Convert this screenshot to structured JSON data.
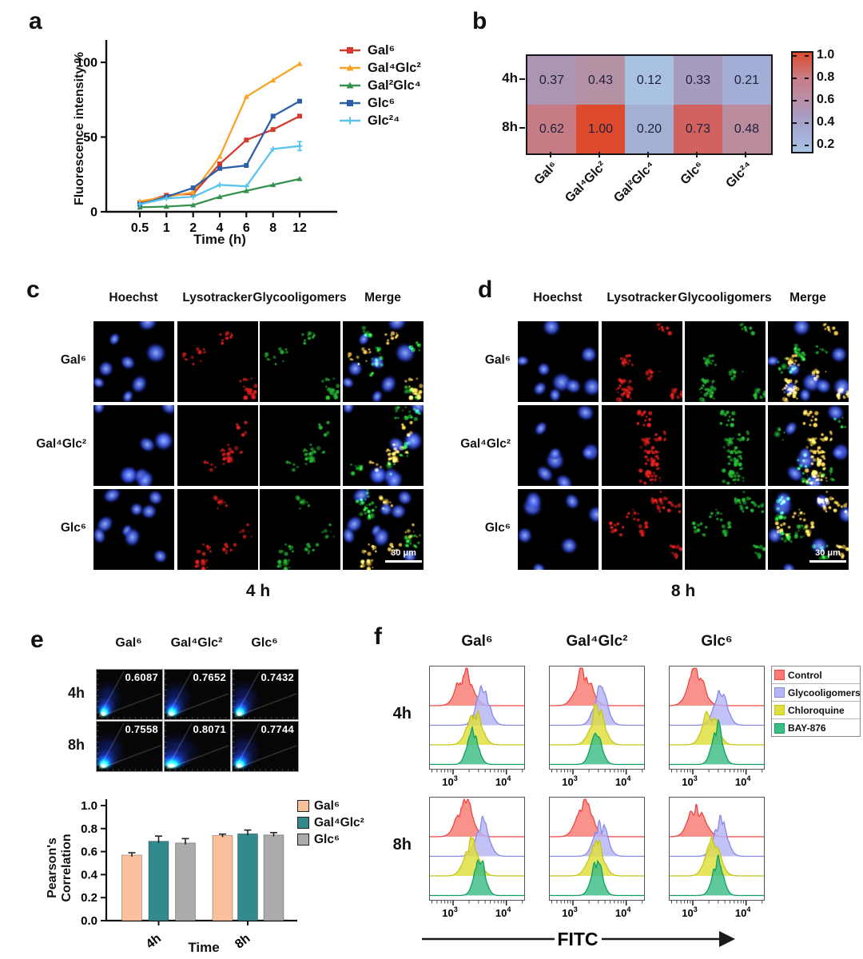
{
  "panels": {
    "a": "a",
    "b": "b",
    "c": "c",
    "d": "d",
    "e": "e",
    "f": "f"
  },
  "chart_data": [
    {
      "id": "a_line",
      "type": "line",
      "xlabel": "Time (h)",
      "ylabel": "Fluorescence intensity %",
      "x_categories": [
        "0.5",
        "1",
        "2",
        "4",
        "6",
        "8",
        "12"
      ],
      "yticks": [
        "0",
        "50",
        "100"
      ],
      "ytick_values": [
        0,
        50,
        100
      ],
      "ylim": [
        0,
        105
      ],
      "legend_position": "right",
      "series": [
        {
          "name": "Gal⁶",
          "color": "#d23b2d",
          "marker": "square",
          "values": [
            6,
            11,
            12,
            32,
            48,
            55,
            64
          ]
        },
        {
          "name": "Gal⁴Glc²",
          "color": "#f7a427",
          "marker": "triangle",
          "values": [
            7,
            10,
            13,
            37,
            77,
            88,
            99
          ]
        },
        {
          "name": "Gal²Glc⁴",
          "color": "#35914d",
          "marker": "triangle",
          "values": [
            3,
            3.5,
            4.5,
            10,
            14,
            18,
            22
          ]
        },
        {
          "name": "Glc⁶",
          "color": "#2d5fa8",
          "marker": "square",
          "values": [
            5,
            10,
            16,
            29,
            31,
            64,
            74
          ]
        },
        {
          "name": "Glc²⁴",
          "color": "#59c5ea",
          "marker": "plus",
          "values": [
            5,
            9,
            10,
            18,
            17,
            42,
            44
          ],
          "error_bars": [
            0,
            0,
            0,
            0,
            0,
            0,
            3
          ]
        }
      ]
    },
    {
      "id": "b_heatmap",
      "type": "heatmap",
      "rows": [
        "4h",
        "8h"
      ],
      "columns": [
        "Gal⁶",
        "Gal⁴Glc²",
        "Gal²Glc⁴",
        "Glc⁶",
        "Glc²⁴"
      ],
      "values": [
        [
          0.37,
          0.43,
          0.12,
          0.33,
          0.21
        ],
        [
          0.62,
          1.0,
          0.2,
          0.73,
          0.48
        ]
      ],
      "value_labels": [
        [
          "0.37",
          "0.43",
          "0.12",
          "0.33",
          "0.21"
        ],
        [
          "0.62",
          "1.00",
          "0.20",
          "0.73",
          "0.48"
        ]
      ],
      "cell_colors": [
        [
          "#ab95b2",
          "#b492a4",
          "#a9c2e2",
          "#a79bc0",
          "#a3aed6"
        ],
        [
          "#c67c85",
          "#de4a2c",
          "#a3b0d4",
          "#d26260",
          "#bb8c9e"
        ]
      ],
      "colorbar": {
        "ticks": [
          "1.0",
          "0.8",
          "0.6",
          "0.4",
          "0.2"
        ],
        "gradient": [
          "#de4a2c",
          "#c97c86",
          "#bb8da4",
          "#a89cc4",
          "#a4b1d8",
          "#aac5e5"
        ]
      }
    },
    {
      "id": "e_scatter",
      "type": "scatter",
      "columns": [
        "Gal⁶",
        "Gal⁴Glc²",
        "Glc⁶"
      ],
      "rows": [
        "4h",
        "8h"
      ],
      "pearson": [
        [
          "0.6087",
          "0.7652",
          "0.7432"
        ],
        [
          "0.7558",
          "0.8071",
          "0.7744"
        ]
      ]
    },
    {
      "id": "e_bar",
      "type": "bar",
      "categories": [
        "4h",
        "8h"
      ],
      "xlabel": "Time",
      "ylabel": "Pearson's Correlation",
      "yticks": [
        "0.0",
        "0.2",
        "0.4",
        "0.6",
        "0.8",
        "1.0"
      ],
      "ylim": [
        0,
        1.0
      ],
      "series": [
        {
          "name": "Gal⁶",
          "color": "#f9c09c",
          "values": [
            0.57,
            0.74
          ],
          "errors": [
            0.02,
            0.012
          ]
        },
        {
          "name": "Gal⁴Glc²",
          "color": "#338a8c",
          "values": [
            0.69,
            0.755
          ],
          "errors": [
            0.045,
            0.032
          ]
        },
        {
          "name": "Glc⁶",
          "color": "#ababab",
          "values": [
            0.675,
            0.745
          ],
          "errors": [
            0.038,
            0.02
          ]
        }
      ]
    },
    {
      "id": "f_flow",
      "type": "histogram",
      "columns": [
        "Gal⁶",
        "Gal⁴Glc²",
        "Glc⁶"
      ],
      "rows": [
        "4h",
        "8h"
      ],
      "xlabel": "FITC",
      "xticks": [
        {
          "base": "10",
          "exp": "3"
        },
        {
          "base": "10",
          "exp": "4"
        }
      ],
      "xrange_log10": [
        2.55,
        4.35
      ],
      "sigmas_log10": [
        0.14,
        0.12,
        0.13,
        0.1
      ],
      "legend": [
        {
          "name": "Control",
          "fill": "#f87a72",
          "stroke": "#ef4444"
        },
        {
          "name": "Glycooligomers",
          "fill": "#b5b5f5",
          "stroke": "#8888e8"
        },
        {
          "name": "Chloroquine",
          "fill": "#dede3c",
          "stroke": "#c6c618"
        },
        {
          "name": "BAY-876",
          "fill": "#3cbd85",
          "stroke": "#0f9f60"
        }
      ],
      "peaks_log10": [
        [
          [
            3.22,
            3.56,
            3.4,
            3.37
          ],
          [
            3.2,
            3.52,
            3.46,
            3.44
          ],
          [
            3.06,
            3.52,
            3.33,
            3.46
          ]
        ],
        [
          [
            3.22,
            3.55,
            3.35,
            3.5
          ],
          [
            3.22,
            3.52,
            3.43,
            3.45
          ],
          [
            3.08,
            3.52,
            3.38,
            3.47
          ]
        ]
      ]
    }
  ],
  "microscopy": {
    "c": {
      "caption": "4 h",
      "columns": [
        "Hoechst",
        "Lysotracker",
        "Glycooligomers",
        "Merge"
      ],
      "rows": [
        "Gal⁶",
        "Gal⁴Glc²",
        "Glc⁶"
      ],
      "scale_bar_label": "30 μm",
      "channel_colors": {
        "hoechst": "#3a55e8",
        "lysotracker": "#ee2222",
        "glycooligomers": "#28c238"
      }
    },
    "d": {
      "caption": "8 h",
      "columns": [
        "Hoechst",
        "Lysotracker",
        "Glycooligomers",
        "Merge"
      ],
      "rows": [
        "Gal⁶",
        "Gal⁴Glc²",
        "Glc⁶"
      ],
      "scale_bar_label": "30 μm",
      "channel_colors": {
        "hoechst": "#3a55e8",
        "lysotracker": "#ee2222",
        "glycooligomers": "#28c238"
      }
    }
  }
}
